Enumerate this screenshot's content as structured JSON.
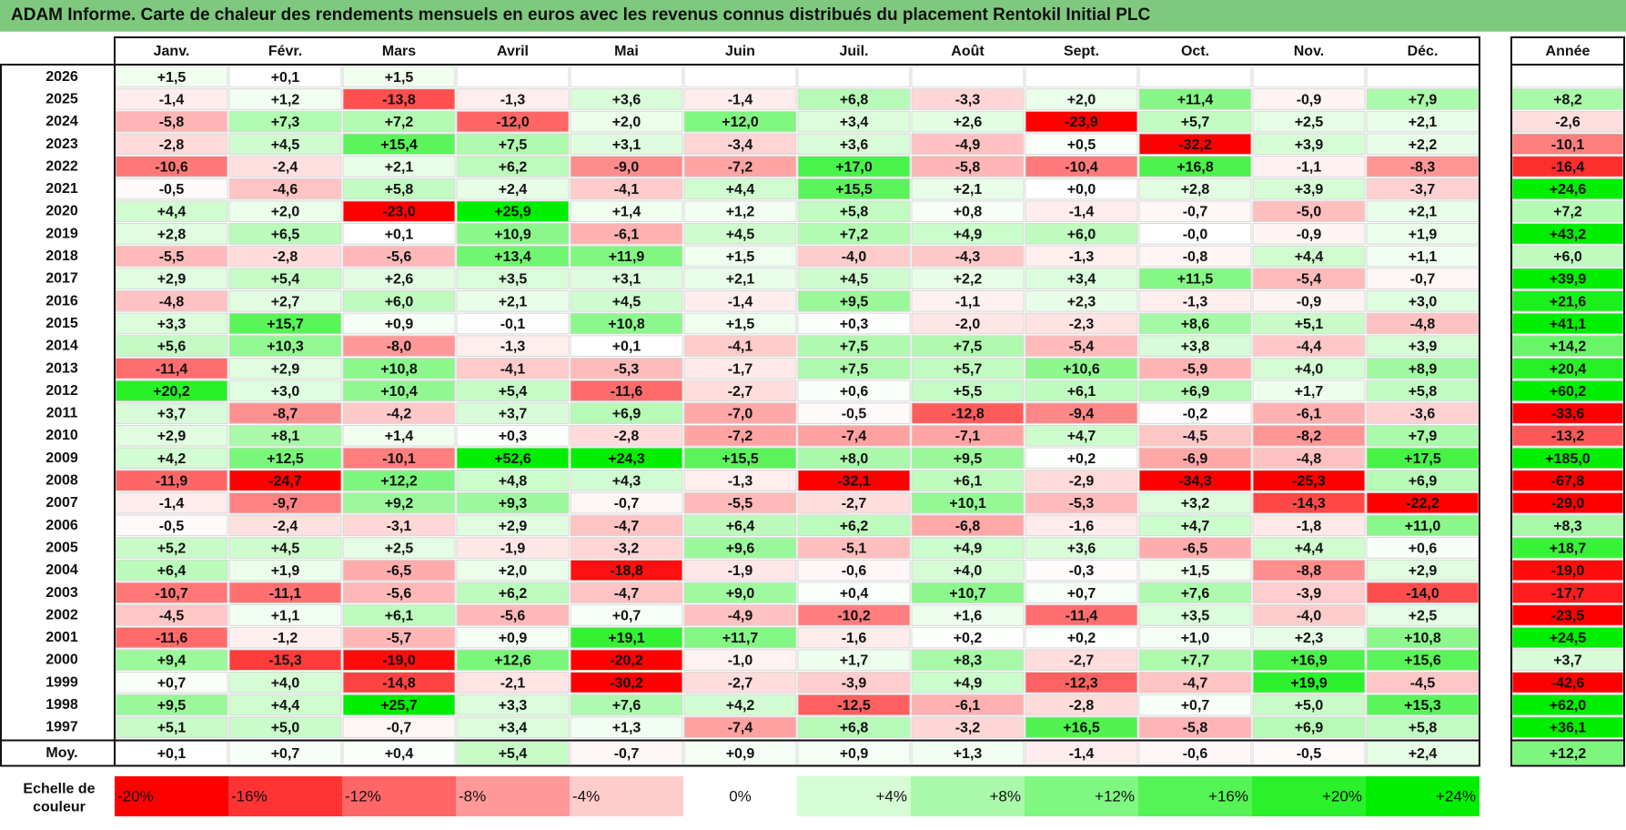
{
  "title": "ADAM Informe. Carte de chaleur des rendements mensuels en euros avec les revenus connus distribués du placement Rentokil Initial PLC",
  "chart_data": {
    "type": "heatmap",
    "title": "ADAM Informe. Carte de chaleur des rendements mensuels en euros avec les revenus connus distribués du placement Rentokil Initial PLC",
    "months": [
      "Janv.",
      "Févr.",
      "Mars",
      "Avril",
      "Mai",
      "Juin",
      "Juil.",
      "Août",
      "Sept.",
      "Oct.",
      "Nov.",
      "Déc."
    ],
    "year_column_label": "Année",
    "average_row_label": "Moy.",
    "rows": [
      {
        "year": "2026",
        "values": [
          "+1,5",
          "+0,1",
          "+1,5",
          "",
          "",
          "",
          "",
          "",
          "",
          "",
          "",
          ""
        ],
        "annual": ""
      },
      {
        "year": "2025",
        "values": [
          "-1,4",
          "+1,2",
          "-13,8",
          "-1,3",
          "+3,6",
          "-1,4",
          "+6,8",
          "-3,3",
          "+2,0",
          "+11,4",
          "-0,9",
          "+7,9"
        ],
        "annual": "+8,2"
      },
      {
        "year": "2024",
        "values": [
          "-5,8",
          "+7,3",
          "+7,2",
          "-12,0",
          "+2,0",
          "+12,0",
          "+3,4",
          "+2,6",
          "-23,9",
          "+5,7",
          "+2,5",
          "+2,1"
        ],
        "annual": "-2,6"
      },
      {
        "year": "2023",
        "values": [
          "-2,8",
          "+4,5",
          "+15,4",
          "+7,5",
          "+3,1",
          "-3,4",
          "+3,6",
          "-4,9",
          "+0,5",
          "-32,2",
          "+3,9",
          "+2,2"
        ],
        "annual": "-10,1"
      },
      {
        "year": "2022",
        "values": [
          "-10,6",
          "-2,4",
          "+2,1",
          "+6,2",
          "-9,0",
          "-7,2",
          "+17,0",
          "-5,8",
          "-10,4",
          "+16,8",
          "-1,1",
          "-8,3"
        ],
        "annual": "-16,4"
      },
      {
        "year": "2021",
        "values": [
          "-0,5",
          "-4,6",
          "+5,8",
          "+2,4",
          "-4,1",
          "+4,4",
          "+15,5",
          "+2,1",
          "+0,0",
          "+2,8",
          "+3,9",
          "-3,7"
        ],
        "annual": "+24,6"
      },
      {
        "year": "2020",
        "values": [
          "+4,4",
          "+2,0",
          "-23,0",
          "+25,9",
          "+1,4",
          "+1,2",
          "+5,8",
          "+0,8",
          "-1,4",
          "-0,7",
          "-5,0",
          "+2,1"
        ],
        "annual": "+7,2"
      },
      {
        "year": "2019",
        "values": [
          "+2,8",
          "+6,5",
          "+0,1",
          "+10,9",
          "-6,1",
          "+4,5",
          "+7,2",
          "+4,9",
          "+6,0",
          "-0,0",
          "-0,9",
          "+1,9"
        ],
        "annual": "+43,2"
      },
      {
        "year": "2018",
        "values": [
          "-5,5",
          "-2,8",
          "-5,6",
          "+13,4",
          "+11,9",
          "+1,5",
          "-4,0",
          "-4,3",
          "-1,3",
          "-0,8",
          "+4,4",
          "+1,1"
        ],
        "annual": "+6,0"
      },
      {
        "year": "2017",
        "values": [
          "+2,9",
          "+5,4",
          "+2,6",
          "+3,5",
          "+3,1",
          "+2,1",
          "+4,5",
          "+2,2",
          "+3,4",
          "+11,5",
          "-5,4",
          "-0,7"
        ],
        "annual": "+39,9"
      },
      {
        "year": "2016",
        "values": [
          "-4,8",
          "+2,7",
          "+6,0",
          "+2,1",
          "+4,5",
          "-1,4",
          "+9,5",
          "-1,1",
          "+2,3",
          "-1,3",
          "-0,9",
          "+3,0"
        ],
        "annual": "+21,6"
      },
      {
        "year": "2015",
        "values": [
          "+3,3",
          "+15,7",
          "+0,9",
          "-0,1",
          "+10,8",
          "+1,5",
          "+0,3",
          "-2,0",
          "-2,3",
          "+8,6",
          "+5,1",
          "-4,8"
        ],
        "annual": "+41,1"
      },
      {
        "year": "2014",
        "values": [
          "+5,6",
          "+10,3",
          "-8,0",
          "-1,3",
          "+0,1",
          "-4,1",
          "+7,5",
          "+7,5",
          "-5,4",
          "+3,8",
          "-4,4",
          "+3,9"
        ],
        "annual": "+14,2"
      },
      {
        "year": "2013",
        "values": [
          "-11,4",
          "+2,9",
          "+10,8",
          "-4,1",
          "-5,3",
          "-1,7",
          "+7,5",
          "+5,7",
          "+10,6",
          "-5,9",
          "+4,0",
          "+8,9"
        ],
        "annual": "+20,4"
      },
      {
        "year": "2012",
        "values": [
          "+20,2",
          "+3,0",
          "+10,4",
          "+5,4",
          "-11,6",
          "-2,7",
          "+0,6",
          "+5,5",
          "+6,1",
          "+6,9",
          "+1,7",
          "+5,8"
        ],
        "annual": "+60,2"
      },
      {
        "year": "2011",
        "values": [
          "+3,7",
          "-8,7",
          "-4,2",
          "+3,7",
          "+6,9",
          "-7,0",
          "-0,5",
          "-12,8",
          "-9,4",
          "-0,2",
          "-6,1",
          "-3,6"
        ],
        "annual": "-33,6"
      },
      {
        "year": "2010",
        "values": [
          "+2,9",
          "+8,1",
          "+1,4",
          "+0,3",
          "-2,8",
          "-7,2",
          "-7,4",
          "-7,1",
          "+4,7",
          "-4,5",
          "-8,2",
          "+7,9"
        ],
        "annual": "-13,2"
      },
      {
        "year": "2009",
        "values": [
          "+4,2",
          "+12,5",
          "-10,1",
          "+52,6",
          "+24,3",
          "+15,5",
          "+8,0",
          "+9,5",
          "+0,2",
          "-6,9",
          "-4,8",
          "+17,5"
        ],
        "annual": "+185,0"
      },
      {
        "year": "2008",
        "values": [
          "-11,9",
          "-24,7",
          "+12,2",
          "+4,8",
          "+4,3",
          "-1,3",
          "-32,1",
          "+6,1",
          "-2,9",
          "-34,3",
          "-25,3",
          "+6,9"
        ],
        "annual": "-67,8"
      },
      {
        "year": "2007",
        "values": [
          "-1,4",
          "-9,7",
          "+9,2",
          "+9,3",
          "-0,7",
          "-5,5",
          "-2,7",
          "+10,1",
          "-5,3",
          "+3,2",
          "-14,3",
          "-22,2"
        ],
        "annual": "-29,0"
      },
      {
        "year": "2006",
        "values": [
          "-0,5",
          "-2,4",
          "-3,1",
          "+2,9",
          "-4,7",
          "+6,4",
          "+6,2",
          "-6,8",
          "-1,6",
          "+4,7",
          "-1,8",
          "+11,0"
        ],
        "annual": "+8,3"
      },
      {
        "year": "2005",
        "values": [
          "+5,2",
          "+4,5",
          "+2,5",
          "-1,9",
          "-3,2",
          "+9,6",
          "-5,1",
          "+4,9",
          "+3,6",
          "-6,5",
          "+4,4",
          "+0,6"
        ],
        "annual": "+18,7"
      },
      {
        "year": "2004",
        "values": [
          "+6,4",
          "+1,9",
          "-6,5",
          "+2,0",
          "-18,8",
          "-1,9",
          "-0,6",
          "+4,0",
          "-0,3",
          "+1,5",
          "-8,8",
          "+2,9"
        ],
        "annual": "-19,0"
      },
      {
        "year": "2003",
        "values": [
          "-10,7",
          "-11,1",
          "-5,6",
          "+6,2",
          "-4,7",
          "+9,0",
          "+0,4",
          "+10,7",
          "+0,7",
          "+7,6",
          "-3,9",
          "-14,0"
        ],
        "annual": "-17,7"
      },
      {
        "year": "2002",
        "values": [
          "-4,5",
          "+1,1",
          "+6,1",
          "-5,6",
          "+0,7",
          "-4,9",
          "-10,2",
          "+1,6",
          "-11,4",
          "+3,5",
          "-4,0",
          "+2,5"
        ],
        "annual": "-23,5"
      },
      {
        "year": "2001",
        "values": [
          "-11,6",
          "-1,2",
          "-5,7",
          "+0,9",
          "+19,1",
          "+11,7",
          "-1,6",
          "+0,2",
          "+0,2",
          "+1,0",
          "+2,3",
          "+10,8"
        ],
        "annual": "+24,5"
      },
      {
        "year": "2000",
        "values": [
          "+9,4",
          "-15,3",
          "-19,0",
          "+12,6",
          "-20,2",
          "-1,0",
          "+1,7",
          "+8,3",
          "-2,7",
          "+7,7",
          "+16,9",
          "+15,6"
        ],
        "annual": "+3,7"
      },
      {
        "year": "1999",
        "values": [
          "+0,7",
          "+4,0",
          "-14,8",
          "-2,1",
          "-30,2",
          "-2,7",
          "-3,9",
          "+4,9",
          "-12,3",
          "-4,7",
          "+19,9",
          "-4,5"
        ],
        "annual": "-42,6"
      },
      {
        "year": "1998",
        "values": [
          "+9,5",
          "+4,4",
          "+25,7",
          "+3,3",
          "+7,6",
          "+4,2",
          "-12,5",
          "-6,1",
          "-2,8",
          "+0,7",
          "+5,0",
          "+15,3"
        ],
        "annual": "+62,0"
      },
      {
        "year": "1997",
        "values": [
          "+5,1",
          "+5,0",
          "-0,7",
          "+3,4",
          "+1,3",
          "-7,4",
          "+6,8",
          "-3,2",
          "+16,5",
          "-5,8",
          "+6,9",
          "+5,8"
        ],
        "annual": "+36,1"
      }
    ],
    "average": {
      "values": [
        "+0,1",
        "+0,7",
        "+0,4",
        "+5,4",
        "-0,7",
        "+0,9",
        "+0,9",
        "+1,3",
        "-1,4",
        "-0,6",
        "-0,5",
        "+2,4"
      ],
      "annual": "+12,2"
    },
    "scale": {
      "label_line1": "Echelle de",
      "label_line2": "couleur",
      "steps": [
        {
          "label": "-20%",
          "value": -20
        },
        {
          "label": "-16%",
          "value": -16
        },
        {
          "label": "-12%",
          "value": -12
        },
        {
          "label": "-8%",
          "value": -8
        },
        {
          "label": "-4%",
          "value": -4
        },
        {
          "label": "0%",
          "value": 0
        },
        {
          "label": "+4%",
          "value": 4
        },
        {
          "label": "+8%",
          "value": 8
        },
        {
          "label": "+12%",
          "value": 12
        },
        {
          "label": "+16%",
          "value": 16
        },
        {
          "label": "+20%",
          "value": 20
        },
        {
          "label": "+24%",
          "value": 24
        }
      ]
    },
    "colors": {
      "negative": "#ff0000",
      "neutral": "#ffffff",
      "positive": "#00ee00",
      "title_bg": "#7fc97f"
    }
  }
}
